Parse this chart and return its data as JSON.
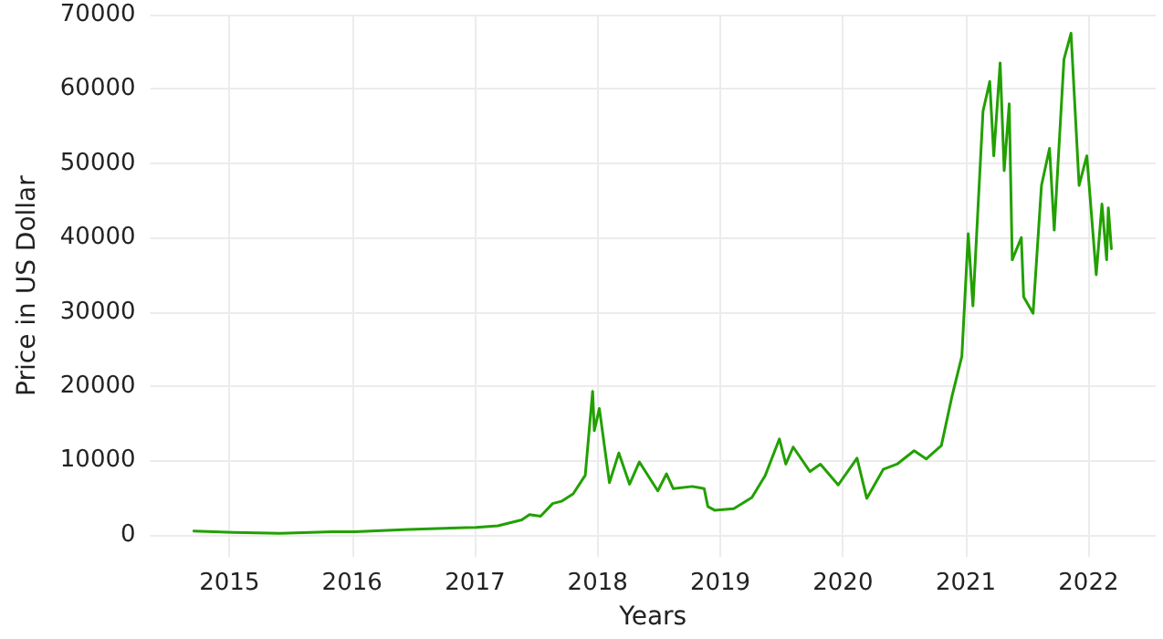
{
  "chart_data": {
    "type": "line",
    "xlabel": "Years",
    "ylabel": "Price in US Dollar",
    "x": [
      "2014-09-17",
      "2015-01-14",
      "2015-06-01",
      "2015-11-04",
      "2016-01-10",
      "2016-06-16",
      "2017-01-04",
      "2017-03-10",
      "2017-05-20",
      "2017-06-12",
      "2017-07-15",
      "2017-08-20",
      "2017-09-15",
      "2017-10-20",
      "2017-11-25",
      "2017-12-17",
      "2017-12-22",
      "2018-01-06",
      "2018-02-05",
      "2018-03-05",
      "2018-04-06",
      "2018-05-05",
      "2018-06-29",
      "2018-07-25",
      "2018-08-14",
      "2018-10-10",
      "2018-11-14",
      "2018-11-25",
      "2018-12-15",
      "2019-02-10",
      "2019-04-05",
      "2019-05-15",
      "2019-06-26",
      "2019-07-15",
      "2019-08-06",
      "2019-09-25",
      "2019-10-26",
      "2019-12-18",
      "2020-02-12",
      "2020-03-12",
      "2020-04-30",
      "2020-06-10",
      "2020-07-31",
      "2020-09-05",
      "2020-10-20",
      "2020-11-20",
      "2020-12-20",
      "2021-01-08",
      "2021-01-22",
      "2021-02-21",
      "2021-03-13",
      "2021-03-25",
      "2021-04-13",
      "2021-04-25",
      "2021-05-10",
      "2021-05-19",
      "2021-06-15",
      "2021-06-22",
      "2021-07-20",
      "2021-08-14",
      "2021-09-07",
      "2021-09-21",
      "2021-10-20",
      "2021-11-10",
      "2021-12-04",
      "2021-12-27",
      "2022-01-24",
      "2022-02-10",
      "2022-02-24",
      "2022-03-01",
      "2022-03-10"
    ],
    "series": [
      {
        "color": "#22a000",
        "values": [
          500,
          300,
          200,
          400,
          400,
          700,
          1000,
          1200,
          2000,
          2700,
          2500,
          4200,
          4500,
          5500,
          8000,
          19300,
          14000,
          17000,
          7000,
          11000,
          6800,
          9800,
          5900,
          8200,
          6200,
          6500,
          6200,
          3800,
          3300,
          3500,
          5000,
          8000,
          12900,
          9500,
          11800,
          8500,
          9500,
          6700,
          10300,
          4900,
          8800,
          9500,
          11300,
          10200,
          12000,
          18500,
          24000,
          40500,
          30800,
          57000,
          61000,
          51000,
          63500,
          49000,
          58000,
          37000,
          40000,
          32000,
          29800,
          47000,
          52000,
          41000,
          64000,
          67500,
          47000,
          51000,
          35000,
          44500,
          37000,
          44000,
          38500
        ]
      }
    ],
    "xlim": [
      "2014-05-10",
      "2022-07-20"
    ],
    "xticks": [
      "2015",
      "2016",
      "2017",
      "2018",
      "2019",
      "2020",
      "2021",
      "2022"
    ],
    "ylim": [
      -3000,
      70000
    ],
    "yticks": [
      0,
      10000,
      20000,
      30000,
      40000,
      50000,
      60000,
      70000
    ],
    "grid": true,
    "marker": "none",
    "line_style": "solid"
  }
}
